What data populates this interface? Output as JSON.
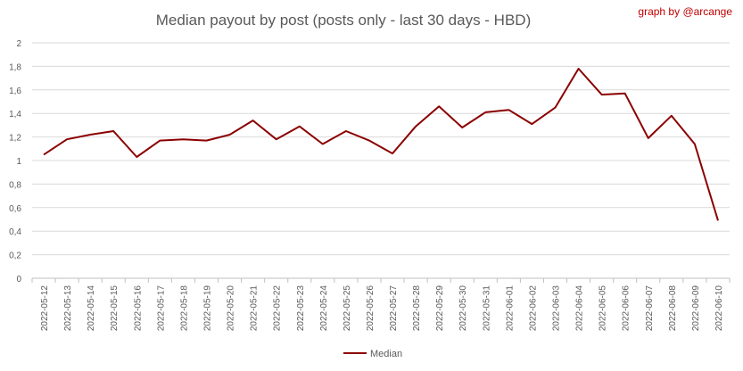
{
  "chart_data": {
    "type": "line",
    "title": "Median payout by post (posts only - last 30 days - HBD)",
    "credit": "graph by @arcange",
    "xlabel": "",
    "ylabel": "",
    "ylim": [
      0,
      2
    ],
    "yticks": [
      "0",
      "0,2",
      "0,4",
      "0,6",
      "0,8",
      "1",
      "1,2",
      "1,4",
      "1,6",
      "1,8",
      "2"
    ],
    "grid": true,
    "legend_position": "bottom",
    "categories": [
      "2022-05-12",
      "2022-05-13",
      "2022-05-14",
      "2022-05-15",
      "2022-05-16",
      "2022-05-17",
      "2022-05-18",
      "2022-05-19",
      "2022-05-20",
      "2022-05-21",
      "2022-05-22",
      "2022-05-23",
      "2022-05-24",
      "2022-05-25",
      "2022-05-26",
      "2022-05-27",
      "2022-05-28",
      "2022-05-29",
      "2022-05-30",
      "2022-05-31",
      "2022-06-01",
      "2022-06-02",
      "2022-06-03",
      "2022-06-04",
      "2022-06-05",
      "2022-06-06",
      "2022-06-07",
      "2022-06-08",
      "2022-06-09",
      "2022-06-10"
    ],
    "series": [
      {
        "name": "Median",
        "color": "#8b0000",
        "values": [
          1.05,
          1.18,
          1.22,
          1.25,
          1.03,
          1.17,
          1.18,
          1.17,
          1.22,
          1.34,
          1.18,
          1.29,
          1.14,
          1.25,
          1.17,
          1.06,
          1.29,
          1.46,
          1.28,
          1.41,
          1.43,
          1.31,
          1.45,
          1.78,
          1.56,
          1.57,
          1.19,
          1.38,
          1.14,
          0.49
        ]
      }
    ]
  }
}
